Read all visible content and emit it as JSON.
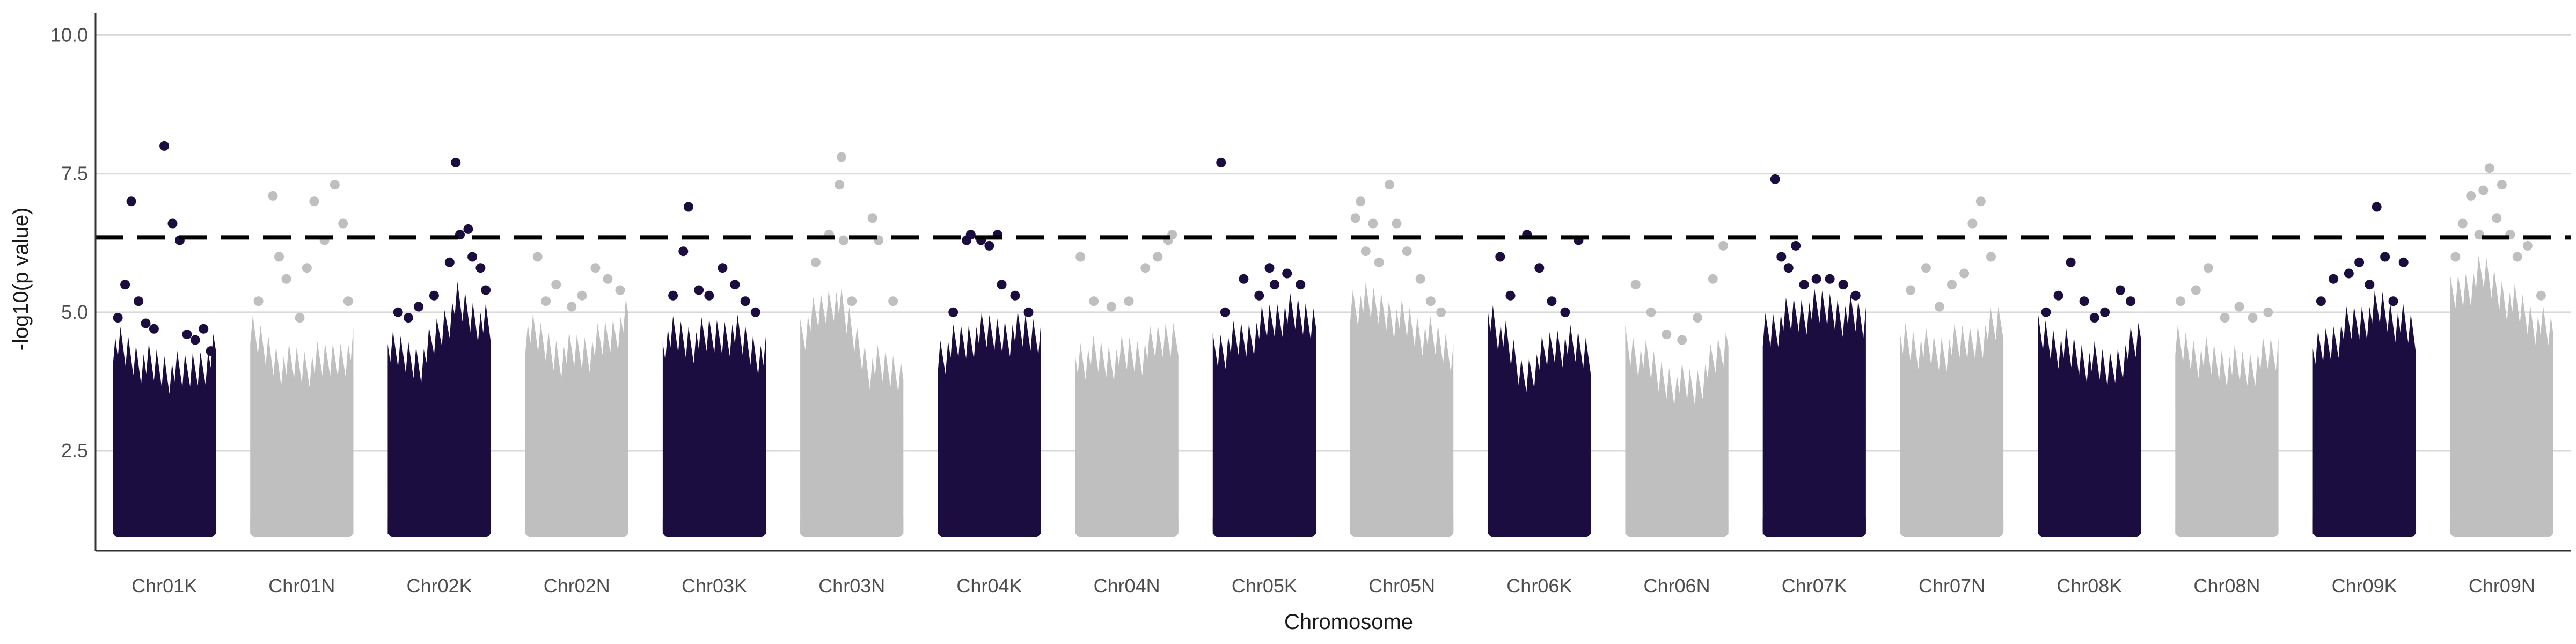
{
  "chart_data": {
    "type": "scatter",
    "title": "",
    "xlabel": "Chromosome",
    "ylabel": "-log10(p value)",
    "ylim": [
      0.7,
      10.4
    ],
    "y_ticks": [
      2.5,
      5.0,
      7.5,
      10.0
    ],
    "y_tick_labels": [
      "2.5",
      "5.0",
      "7.5",
      "10.0"
    ],
    "grid": "horizontal major gridlines",
    "legend": "none",
    "threshold": 6.35,
    "point_floor": 1.0,
    "colors": {
      "dark": "#1c0d40",
      "light": "#bfbfbf",
      "threshold": "#000000",
      "grid": "#d9d9d9",
      "axis": "#333333"
    },
    "categories": [
      "Chr01K",
      "Chr01N",
      "Chr02K",
      "Chr02N",
      "Chr03K",
      "Chr03N",
      "Chr04K",
      "Chr04N",
      "Chr05K",
      "Chr05N",
      "Chr06K",
      "Chr06N",
      "Chr07K",
      "Chr07N",
      "Chr08K",
      "Chr08N",
      "Chr09K",
      "Chr09N"
    ],
    "series": [
      {
        "chromosome": "Chr01K",
        "color": "dark",
        "dense_max": [
          4.8,
          4.4,
          4.2,
          4.6
        ],
        "x": [
          0.05,
          0.12,
          0.18,
          0.25,
          0.32,
          0.4,
          0.5,
          0.58,
          0.65,
          0.72,
          0.8,
          0.88,
          0.95
        ],
        "y": [
          4.9,
          5.5,
          7.0,
          5.2,
          4.8,
          4.7,
          8.0,
          6.6,
          6.3,
          4.6,
          4.5,
          4.7,
          4.3
        ]
      },
      {
        "chromosome": "Chr01N",
        "color": "light",
        "dense_max": [
          4.9,
          4.4,
          4.4,
          4.7
        ],
        "x": [
          0.08,
          0.22,
          0.28,
          0.35,
          0.48,
          0.55,
          0.62,
          0.72,
          0.82,
          0.9,
          0.95
        ],
        "y": [
          5.2,
          7.1,
          6.0,
          5.6,
          4.9,
          5.8,
          7.0,
          6.3,
          7.3,
          6.6,
          5.2
        ]
      },
      {
        "chromosome": "Chr02K",
        "color": "dark",
        "dense_max": [
          4.6,
          4.5,
          5.5,
          5.0
        ],
        "x": [
          0.1,
          0.2,
          0.3,
          0.45,
          0.6,
          0.66,
          0.7,
          0.78,
          0.82,
          0.9,
          0.95
        ],
        "y": [
          5.0,
          4.9,
          5.1,
          5.3,
          5.9,
          7.7,
          6.4,
          6.5,
          6.0,
          5.8,
          5.4
        ]
      },
      {
        "chromosome": "Chr02N",
        "color": "light",
        "dense_max": [
          5.0,
          4.6,
          4.7,
          5.2
        ],
        "x": [
          0.12,
          0.2,
          0.3,
          0.45,
          0.55,
          0.68,
          0.8,
          0.92
        ],
        "y": [
          6.0,
          5.2,
          5.5,
          5.1,
          5.3,
          5.8,
          5.6,
          5.4
        ]
      },
      {
        "chromosome": "Chr03K",
        "color": "dark",
        "dense_max": [
          4.9,
          4.8,
          5.0,
          4.5
        ],
        "x": [
          0.1,
          0.2,
          0.25,
          0.35,
          0.45,
          0.58,
          0.7,
          0.8,
          0.9
        ],
        "y": [
          5.3,
          6.1,
          6.9,
          5.4,
          5.3,
          5.8,
          5.5,
          5.2,
          5.0
        ]
      },
      {
        "chromosome": "Chr03N",
        "color": "light",
        "dense_max": [
          5.0,
          5.6,
          4.4,
          4.3
        ],
        "x": [
          0.15,
          0.28,
          0.38,
          0.4,
          0.42,
          0.5,
          0.7,
          0.76,
          0.9
        ],
        "y": [
          5.9,
          6.4,
          7.3,
          7.8,
          6.3,
          5.2,
          6.7,
          6.3,
          5.2
        ]
      },
      {
        "chromosome": "Chr04K",
        "color": "dark",
        "dense_max": [
          4.6,
          4.9,
          5.0,
          5.0
        ],
        "x": [
          0.15,
          0.28,
          0.32,
          0.42,
          0.5,
          0.58,
          0.62,
          0.75,
          0.88
        ],
        "y": [
          5.0,
          6.3,
          6.4,
          6.3,
          6.2,
          6.4,
          5.5,
          5.3,
          5.0
        ]
      },
      {
        "chromosome": "Chr04N",
        "color": "light",
        "dense_max": [
          4.6,
          4.5,
          4.6,
          5.0
        ],
        "x": [
          0.05,
          0.18,
          0.35,
          0.52,
          0.68,
          0.8,
          0.9,
          0.94
        ],
        "y": [
          6.0,
          5.2,
          5.1,
          5.2,
          5.8,
          6.0,
          6.3,
          6.4
        ]
      },
      {
        "chromosome": "Chr05K",
        "color": "dark",
        "dense_max": [
          4.7,
          4.9,
          5.3,
          5.2
        ],
        "x": [
          0.08,
          0.12,
          0.3,
          0.45,
          0.55,
          0.6,
          0.72,
          0.85
        ],
        "y": [
          7.7,
          5.0,
          5.6,
          5.3,
          5.8,
          5.5,
          5.7,
          5.5
        ]
      },
      {
        "chromosome": "Chr05N",
        "color": "light",
        "dense_max": [
          5.5,
          5.4,
          5.0,
          4.6
        ],
        "x": [
          0.05,
          0.1,
          0.15,
          0.22,
          0.28,
          0.38,
          0.45,
          0.55,
          0.68,
          0.78,
          0.88
        ],
        "y": [
          6.7,
          7.0,
          6.1,
          6.6,
          5.9,
          7.3,
          6.6,
          6.1,
          5.6,
          5.2,
          5.0
        ]
      },
      {
        "chromosome": "Chr06K",
        "color": "dark",
        "dense_max": [
          5.4,
          4.2,
          4.8,
          4.6
        ],
        "x": [
          0.12,
          0.22,
          0.38,
          0.5,
          0.62,
          0.75,
          0.88
        ],
        "y": [
          6.0,
          5.3,
          6.4,
          5.8,
          5.2,
          5.0,
          6.3
        ]
      },
      {
        "chromosome": "Chr06N",
        "color": "light",
        "dense_max": [
          4.8,
          4.2,
          4.0,
          4.8
        ],
        "x": [
          0.1,
          0.25,
          0.4,
          0.55,
          0.7,
          0.85,
          0.95
        ],
        "y": [
          5.5,
          5.0,
          4.6,
          4.5,
          4.9,
          5.6,
          6.2
        ]
      },
      {
        "chromosome": "Chr07K",
        "color": "dark",
        "dense_max": [
          5.0,
          5.3,
          5.4,
          5.2
        ],
        "x": [
          0.12,
          0.18,
          0.25,
          0.32,
          0.4,
          0.52,
          0.65,
          0.78,
          0.9
        ],
        "y": [
          7.4,
          6.0,
          5.8,
          6.2,
          5.5,
          5.6,
          5.6,
          5.5,
          5.3
        ]
      },
      {
        "chromosome": "Chr07N",
        "color": "light",
        "dense_max": [
          4.9,
          4.6,
          4.8,
          5.2
        ],
        "x": [
          0.1,
          0.25,
          0.38,
          0.5,
          0.62,
          0.7,
          0.78,
          0.88
        ],
        "y": [
          5.4,
          5.8,
          5.1,
          5.5,
          5.7,
          6.6,
          7.0,
          6.0
        ]
      },
      {
        "chromosome": "Chr08K",
        "color": "dark",
        "dense_max": [
          5.0,
          4.6,
          4.3,
          4.9
        ],
        "x": [
          0.08,
          0.2,
          0.32,
          0.45,
          0.55,
          0.65,
          0.8,
          0.9
        ],
        "y": [
          5.0,
          5.3,
          5.9,
          5.2,
          4.9,
          5.0,
          5.4,
          5.2
        ]
      },
      {
        "chromosome": "Chr08N",
        "color": "light",
        "dense_max": [
          4.8,
          4.5,
          4.3,
          4.6
        ],
        "x": [
          0.05,
          0.2,
          0.32,
          0.48,
          0.62,
          0.75,
          0.9
        ],
        "y": [
          5.2,
          5.4,
          5.8,
          4.9,
          5.1,
          4.9,
          5.0
        ]
      },
      {
        "chromosome": "Chr09K",
        "color": "dark",
        "dense_max": [
          4.6,
          5.1,
          5.4,
          4.9
        ],
        "x": [
          0.08,
          0.2,
          0.35,
          0.45,
          0.55,
          0.62,
          0.7,
          0.78,
          0.88
        ],
        "y": [
          5.2,
          5.6,
          5.7,
          5.9,
          5.5,
          6.9,
          6.0,
          5.2,
          5.9
        ]
      },
      {
        "chromosome": "Chr09N",
        "color": "light",
        "dense_max": [
          5.6,
          6.0,
          5.4,
          4.9
        ],
        "x": [
          0.05,
          0.12,
          0.2,
          0.28,
          0.32,
          0.38,
          0.45,
          0.5,
          0.58,
          0.65,
          0.75,
          0.88
        ],
        "y": [
          6.0,
          6.6,
          7.1,
          6.4,
          7.2,
          7.6,
          6.7,
          7.3,
          6.4,
          6.0,
          6.2,
          5.3
        ]
      }
    ]
  }
}
